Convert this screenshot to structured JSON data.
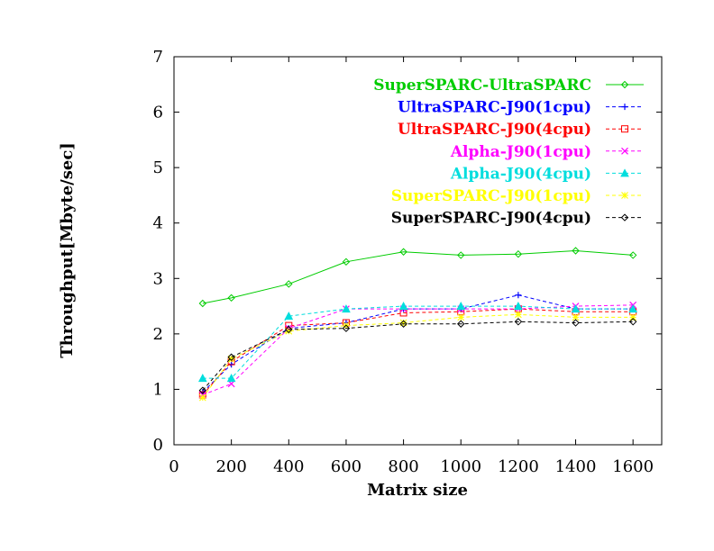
{
  "chart_data": {
    "type": "line",
    "xlabel": "Matrix size",
    "ylabel": "Throughput[Mbyte/sec]",
    "xlim": [
      0,
      1700
    ],
    "ylim": [
      0,
      7
    ],
    "x_ticks": [
      0,
      200,
      400,
      600,
      800,
      1000,
      1200,
      1400,
      1600
    ],
    "y_ticks": [
      0,
      1,
      2,
      3,
      4,
      5,
      6,
      7
    ],
    "grid": false,
    "legend_position": "top-right",
    "x": [
      100,
      200,
      400,
      600,
      800,
      1000,
      1200,
      1400,
      1600
    ],
    "series": [
      {
        "name": "SuperSPARC-UltraSPARC",
        "color": "#00cc00",
        "marker": "diamond",
        "dashed": false,
        "values": [
          2.55,
          2.65,
          2.9,
          3.3,
          3.48,
          3.42,
          3.44,
          3.5,
          3.42
        ]
      },
      {
        "name": "UltraSPARC-J90(1cpu)",
        "color": "#0000ff",
        "marker": "plus",
        "dashed": true,
        "values": [
          0.95,
          1.45,
          2.1,
          2.2,
          2.45,
          2.45,
          2.7,
          2.45,
          2.45
        ]
      },
      {
        "name": "UltraSPARC-J90(4cpu)",
        "color": "#ff0000",
        "marker": "square",
        "dashed": true,
        "values": [
          0.9,
          1.5,
          2.15,
          2.2,
          2.38,
          2.4,
          2.45,
          2.4,
          2.4
        ]
      },
      {
        "name": "Alpha-J90(1cpu)",
        "color": "#ff00ff",
        "marker": "cross",
        "dashed": true,
        "values": [
          0.9,
          1.1,
          2.1,
          2.45,
          2.45,
          2.45,
          2.45,
          2.5,
          2.52
        ]
      },
      {
        "name": "Alpha-J90(4cpu)",
        "color": "#00dddd",
        "marker": "triangle",
        "dashed": true,
        "values": [
          1.2,
          1.2,
          2.32,
          2.45,
          2.5,
          2.5,
          2.5,
          2.45,
          2.45
        ]
      },
      {
        "name": "SuperSPARC-J90(1cpu)",
        "color": "#ffff00",
        "marker": "star",
        "dashed": true,
        "values": [
          0.85,
          1.55,
          2.05,
          2.15,
          2.2,
          2.3,
          2.35,
          2.3,
          2.3
        ]
      },
      {
        "name": "SuperSPARC-J90(4cpu)",
        "color": "#000000",
        "marker": "diamond",
        "dashed": true,
        "values": [
          0.98,
          1.58,
          2.08,
          2.1,
          2.18,
          2.18,
          2.22,
          2.2,
          2.22
        ]
      }
    ]
  }
}
